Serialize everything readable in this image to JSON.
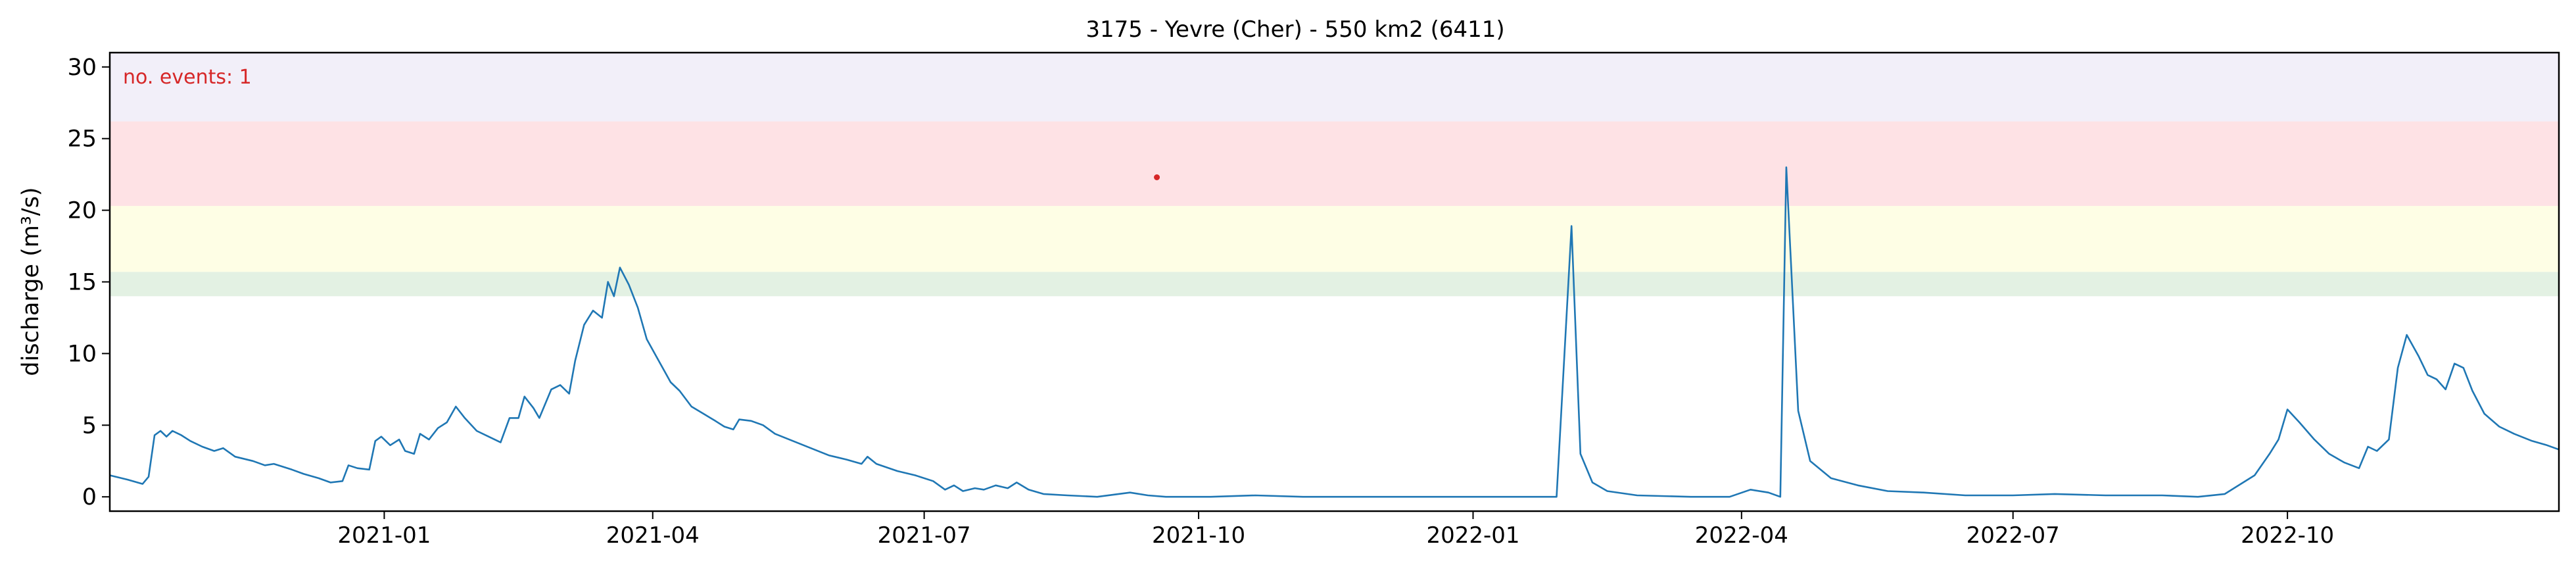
{
  "chart_data": {
    "type": "line",
    "title": "3175 - Yevre (Cher) - 550 km2 (6411)",
    "xlabel": "",
    "ylabel": "discharge (m³/s)",
    "annotation": "no. events: 1",
    "xlim": [
      "2020-10-01",
      "2022-12-31"
    ],
    "ylim": [
      -1,
      31
    ],
    "x_ticks": [
      "2021-01",
      "2021-04",
      "2021-07",
      "2021-10",
      "2022-01",
      "2022-04",
      "2022-07",
      "2022-10"
    ],
    "x_tick_dates": [
      "2021-01-01",
      "2021-04-01",
      "2021-07-01",
      "2021-10-01",
      "2022-01-01",
      "2022-04-01",
      "2022-07-01",
      "2022-10-01"
    ],
    "y_ticks": [
      0,
      5,
      10,
      15,
      20,
      25,
      30
    ],
    "grid": false,
    "colors": {
      "line": "#1f77b4",
      "event_marker": "#d62728",
      "annotation_text": "#d62728",
      "band_green": "#e3f1e3",
      "band_yellow": "#fefee5",
      "band_red": "#fee2e5",
      "band_purple": "#f2eff9"
    },
    "threshold_bands": [
      {
        "from": 14.0,
        "to": 15.7,
        "color": "#e3f1e3"
      },
      {
        "from": 15.7,
        "to": 20.3,
        "color": "#fefee5"
      },
      {
        "from": 20.3,
        "to": 26.2,
        "color": "#fee2e5"
      },
      {
        "from": 26.2,
        "to": 31.0,
        "color": "#f2eff9"
      }
    ],
    "events": [
      {
        "x": "2021-09-17",
        "y": 22.3
      }
    ],
    "series": [
      {
        "points": [
          [
            "2020-10-01",
            1.5
          ],
          [
            "2020-10-07",
            1.2
          ],
          [
            "2020-10-12",
            0.9
          ],
          [
            "2020-10-14",
            1.4
          ],
          [
            "2020-10-16",
            4.3
          ],
          [
            "2020-10-18",
            4.6
          ],
          [
            "2020-10-20",
            4.2
          ],
          [
            "2020-10-22",
            4.6
          ],
          [
            "2020-10-25",
            4.3
          ],
          [
            "2020-10-28",
            3.9
          ],
          [
            "2020-11-01",
            3.5
          ],
          [
            "2020-11-05",
            3.2
          ],
          [
            "2020-11-08",
            3.4
          ],
          [
            "2020-11-12",
            2.8
          ],
          [
            "2020-11-18",
            2.5
          ],
          [
            "2020-11-22",
            2.2
          ],
          [
            "2020-11-25",
            2.3
          ],
          [
            "2020-12-01",
            1.9
          ],
          [
            "2020-12-05",
            1.6
          ],
          [
            "2020-12-10",
            1.3
          ],
          [
            "2020-12-14",
            1.0
          ],
          [
            "2020-12-18",
            1.1
          ],
          [
            "2020-12-20",
            2.2
          ],
          [
            "2020-12-23",
            2.0
          ],
          [
            "2020-12-27",
            1.9
          ],
          [
            "2020-12-29",
            3.9
          ],
          [
            "2020-12-31",
            4.2
          ],
          [
            "2021-01-03",
            3.6
          ],
          [
            "2021-01-06",
            4.0
          ],
          [
            "2021-01-08",
            3.2
          ],
          [
            "2021-01-11",
            3.0
          ],
          [
            "2021-01-13",
            4.4
          ],
          [
            "2021-01-16",
            4.0
          ],
          [
            "2021-01-19",
            4.8
          ],
          [
            "2021-01-22",
            5.2
          ],
          [
            "2021-01-25",
            6.3
          ],
          [
            "2021-01-28",
            5.5
          ],
          [
            "2021-02-01",
            4.6
          ],
          [
            "2021-02-05",
            4.2
          ],
          [
            "2021-02-09",
            3.8
          ],
          [
            "2021-02-12",
            5.5
          ],
          [
            "2021-02-15",
            5.5
          ],
          [
            "2021-02-17",
            7.0
          ],
          [
            "2021-02-20",
            6.2
          ],
          [
            "2021-02-22",
            5.5
          ],
          [
            "2021-02-24",
            6.5
          ],
          [
            "2021-02-26",
            7.5
          ],
          [
            "2021-03-01",
            7.8
          ],
          [
            "2021-03-04",
            7.2
          ],
          [
            "2021-03-06",
            9.5
          ],
          [
            "2021-03-09",
            12.0
          ],
          [
            "2021-03-12",
            13.0
          ],
          [
            "2021-03-15",
            12.5
          ],
          [
            "2021-03-17",
            15.0
          ],
          [
            "2021-03-19",
            14.0
          ],
          [
            "2021-03-21",
            16.0
          ],
          [
            "2021-03-24",
            14.8
          ],
          [
            "2021-03-27",
            13.2
          ],
          [
            "2021-03-30",
            11.0
          ],
          [
            "2021-04-03",
            9.5
          ],
          [
            "2021-04-07",
            8.0
          ],
          [
            "2021-04-10",
            7.4
          ],
          [
            "2021-04-14",
            6.3
          ],
          [
            "2021-04-18",
            5.8
          ],
          [
            "2021-04-22",
            5.3
          ],
          [
            "2021-04-25",
            4.9
          ],
          [
            "2021-04-28",
            4.7
          ],
          [
            "2021-04-30",
            5.4
          ],
          [
            "2021-05-04",
            5.3
          ],
          [
            "2021-05-08",
            5.0
          ],
          [
            "2021-05-12",
            4.4
          ],
          [
            "2021-05-18",
            3.9
          ],
          [
            "2021-05-24",
            3.4
          ],
          [
            "2021-05-30",
            2.9
          ],
          [
            "2021-06-05",
            2.6
          ],
          [
            "2021-06-10",
            2.3
          ],
          [
            "2021-06-12",
            2.8
          ],
          [
            "2021-06-15",
            2.3
          ],
          [
            "2021-06-22",
            1.8
          ],
          [
            "2021-06-28",
            1.5
          ],
          [
            "2021-07-04",
            1.1
          ],
          [
            "2021-07-08",
            0.5
          ],
          [
            "2021-07-11",
            0.8
          ],
          [
            "2021-07-14",
            0.4
          ],
          [
            "2021-07-18",
            0.6
          ],
          [
            "2021-07-21",
            0.5
          ],
          [
            "2021-07-25",
            0.8
          ],
          [
            "2021-07-29",
            0.6
          ],
          [
            "2021-08-01",
            1.0
          ],
          [
            "2021-08-05",
            0.5
          ],
          [
            "2021-08-10",
            0.2
          ],
          [
            "2021-08-18",
            0.1
          ],
          [
            "2021-08-28",
            0.0
          ],
          [
            "2021-09-08",
            0.3
          ],
          [
            "2021-09-14",
            0.1
          ],
          [
            "2021-09-20",
            0.0
          ],
          [
            "2021-10-05",
            0.0
          ],
          [
            "2021-10-20",
            0.1
          ],
          [
            "2021-11-05",
            0.0
          ],
          [
            "2021-11-20",
            0.0
          ],
          [
            "2021-12-05",
            0.0
          ],
          [
            "2021-12-20",
            0.0
          ],
          [
            "2022-01-15",
            0.0
          ],
          [
            "2022-01-29",
            0.0
          ],
          [
            "2022-02-03",
            18.9
          ],
          [
            "2022-02-06",
            3.0
          ],
          [
            "2022-02-10",
            1.0
          ],
          [
            "2022-02-15",
            0.4
          ],
          [
            "2022-02-25",
            0.1
          ],
          [
            "2022-03-15",
            0.0
          ],
          [
            "2022-03-28",
            0.0
          ],
          [
            "2022-04-04",
            0.5
          ],
          [
            "2022-04-10",
            0.3
          ],
          [
            "2022-04-14",
            0.0
          ],
          [
            "2022-04-16",
            23.0
          ],
          [
            "2022-04-20",
            6.0
          ],
          [
            "2022-04-24",
            2.5
          ],
          [
            "2022-05-01",
            1.3
          ],
          [
            "2022-05-10",
            0.8
          ],
          [
            "2022-05-20",
            0.4
          ],
          [
            "2022-06-01",
            0.3
          ],
          [
            "2022-06-15",
            0.1
          ],
          [
            "2022-07-01",
            0.1
          ],
          [
            "2022-07-15",
            0.2
          ],
          [
            "2022-08-01",
            0.1
          ],
          [
            "2022-08-20",
            0.1
          ],
          [
            "2022-09-01",
            0.0
          ],
          [
            "2022-09-10",
            0.2
          ],
          [
            "2022-09-20",
            1.5
          ],
          [
            "2022-09-25",
            3.0
          ],
          [
            "2022-09-28",
            4.0
          ],
          [
            "2022-10-01",
            6.1
          ],
          [
            "2022-10-05",
            5.2
          ],
          [
            "2022-10-10",
            4.0
          ],
          [
            "2022-10-15",
            3.0
          ],
          [
            "2022-10-20",
            2.4
          ],
          [
            "2022-10-25",
            2.0
          ],
          [
            "2022-10-28",
            3.5
          ],
          [
            "2022-10-31",
            3.2
          ],
          [
            "2022-11-04",
            4.0
          ],
          [
            "2022-11-07",
            9.0
          ],
          [
            "2022-11-10",
            11.3
          ],
          [
            "2022-11-14",
            9.8
          ],
          [
            "2022-11-17",
            8.5
          ],
          [
            "2022-11-20",
            8.2
          ],
          [
            "2022-11-23",
            7.5
          ],
          [
            "2022-11-26",
            9.3
          ],
          [
            "2022-11-29",
            9.0
          ],
          [
            "2022-12-02",
            7.4
          ],
          [
            "2022-12-06",
            5.8
          ],
          [
            "2022-12-11",
            4.9
          ],
          [
            "2022-12-16",
            4.4
          ],
          [
            "2022-12-22",
            3.9
          ],
          [
            "2022-12-27",
            3.6
          ],
          [
            "2022-12-31",
            3.3
          ]
        ]
      }
    ]
  }
}
